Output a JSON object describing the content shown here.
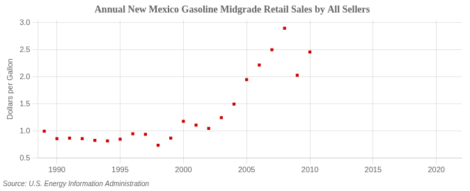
{
  "chart_data": {
    "type": "scatter",
    "title": "Annual New Mexico Gasoline Midgrade Retail Sales by All Sellers",
    "ylabel": "Dollars per Gallon",
    "annotations": [
      "Source: U.S. Energy Information Administration"
    ],
    "x": [
      1989,
      1990,
      1991,
      1992,
      1993,
      1994,
      1995,
      1996,
      1997,
      1998,
      1999,
      2000,
      2001,
      2002,
      2003,
      2004,
      2005,
      2006,
      2007,
      2008,
      2009,
      2010
    ],
    "values": [
      1.0,
      0.86,
      0.87,
      0.86,
      0.83,
      0.82,
      0.85,
      0.95,
      0.94,
      0.74,
      0.87,
      1.18,
      1.11,
      1.05,
      1.25,
      1.5,
      1.95,
      2.22,
      2.5,
      2.9,
      2.03,
      2.46
    ],
    "color": "#cc0000",
    "marker": "square",
    "xlim": [
      1988.5,
      2022
    ],
    "xticks": [
      1990,
      1995,
      2000,
      2005,
      2010,
      2015,
      2020
    ],
    "ylim": [
      0.5,
      3.05
    ],
    "yticks": [
      0.5,
      {
        "value": 1.0,
        "label": "1.0"
      },
      1.5,
      {
        "value": 2.0,
        "label": "2.0"
      },
      2.5,
      {
        "value": 3.0,
        "label": "3.0"
      }
    ],
    "grid": true
  }
}
